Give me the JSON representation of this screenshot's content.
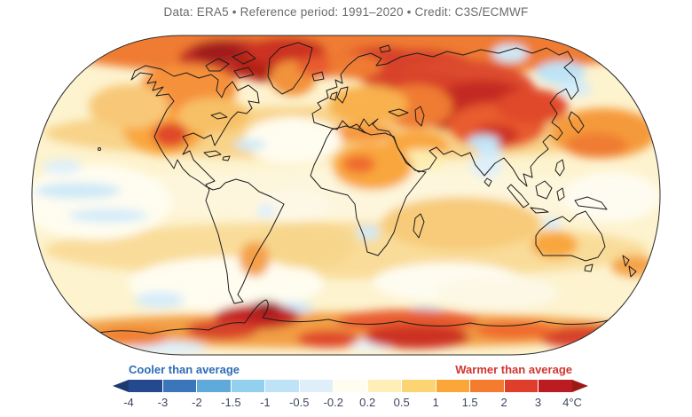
{
  "header": {
    "title": "Data: ERA5 • Reference period: 1991–2020 • Credit: C3S/ECMWF",
    "color": "#6b6b6b"
  },
  "map": {
    "type": "temperature-anomaly-world-map",
    "projection": "Robinson",
    "description": "Global surface air temperature anomaly map; strong warm anomalies over the Arctic, Canadian Arctic islands, Siberia, central Asia and the Antarctic coastline; scattered cool patches over the equatorial east Pacific, Bering Sea, Tibetan Plateau and parts of the Southern Ocean",
    "outline_color": "#2b2b2b",
    "coastline_color": "#1c1c1c"
  },
  "legend": {
    "cooler_label": "Cooler than average",
    "warmer_label": "Warmer than average",
    "cooler_label_color": "#2e6db6",
    "warmer_label_color": "#d23430",
    "unit": "°C",
    "tick_labels": [
      "-4",
      "-3",
      "-2",
      "-1.5",
      "-1",
      "-0.5",
      "-0.2",
      "0.2",
      "0.5",
      "1",
      "1.5",
      "2",
      "3",
      "4°C"
    ],
    "tick_color": "#3c4660",
    "segment_colors": [
      "#24498f",
      "#3b76bb",
      "#60aadb",
      "#92d0ee",
      "#bee3f6",
      "#dfeffa",
      "#fffdf0",
      "#fdefb6",
      "#fdd472",
      "#fba638",
      "#f57b2f",
      "#df3e2b",
      "#ba1c22"
    ],
    "left_arrow_color": "#1d3a70",
    "right_arrow_color": "#9c1916"
  }
}
